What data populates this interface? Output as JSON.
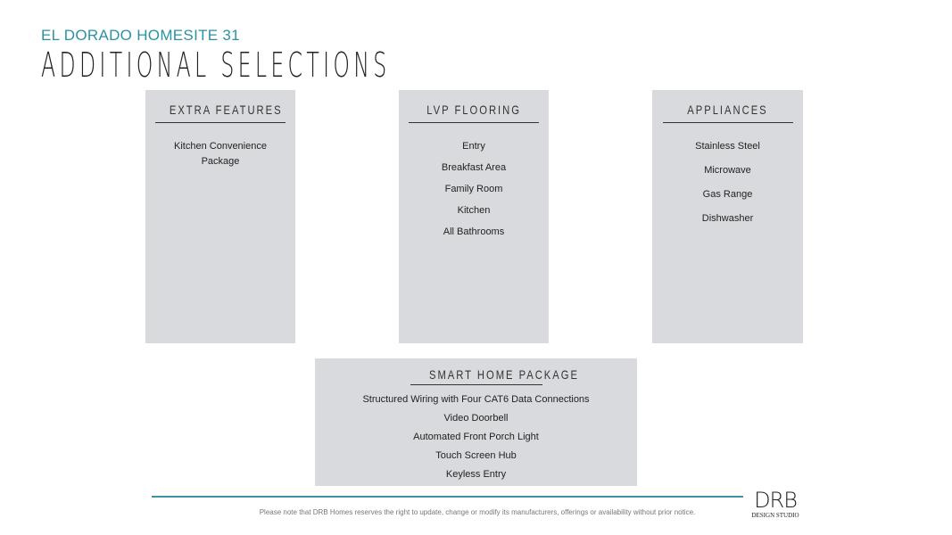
{
  "header": {
    "subtitle": "EL DORADO HOMESITE 31",
    "title": "ADDITIONAL SELECTIONS"
  },
  "boxes": [
    {
      "title": "EXTRA FEATURES",
      "items": [
        "Kitchen Convenience Package"
      ]
    },
    {
      "title": "LVP FLOORING",
      "items": [
        "Entry",
        "Breakfast Area",
        "Family Room",
        "Kitchen",
        "All Bathrooms"
      ]
    },
    {
      "title": "APPLIANCES",
      "items": [
        "Stainless Steel",
        "Microwave",
        "Gas Range",
        "Dishwasher"
      ]
    },
    {
      "title": "SMART HOME PACKAGE",
      "items": [
        "Structured Wiring with Four CAT6 Data Connections",
        "Video Doorbell",
        "Automated Front Porch Light",
        "Touch Screen Hub",
        "Keyless Entry"
      ]
    }
  ],
  "footer": {
    "note": "Please note that DRB Homes reserves the right to update, change or modify its manufacturers, offerings or availability without prior notice.",
    "logo": "DRB",
    "logo_sub": "DESIGN STUDIO"
  },
  "colors": {
    "accent": "#2a93a3",
    "box": "#d9dadd"
  }
}
